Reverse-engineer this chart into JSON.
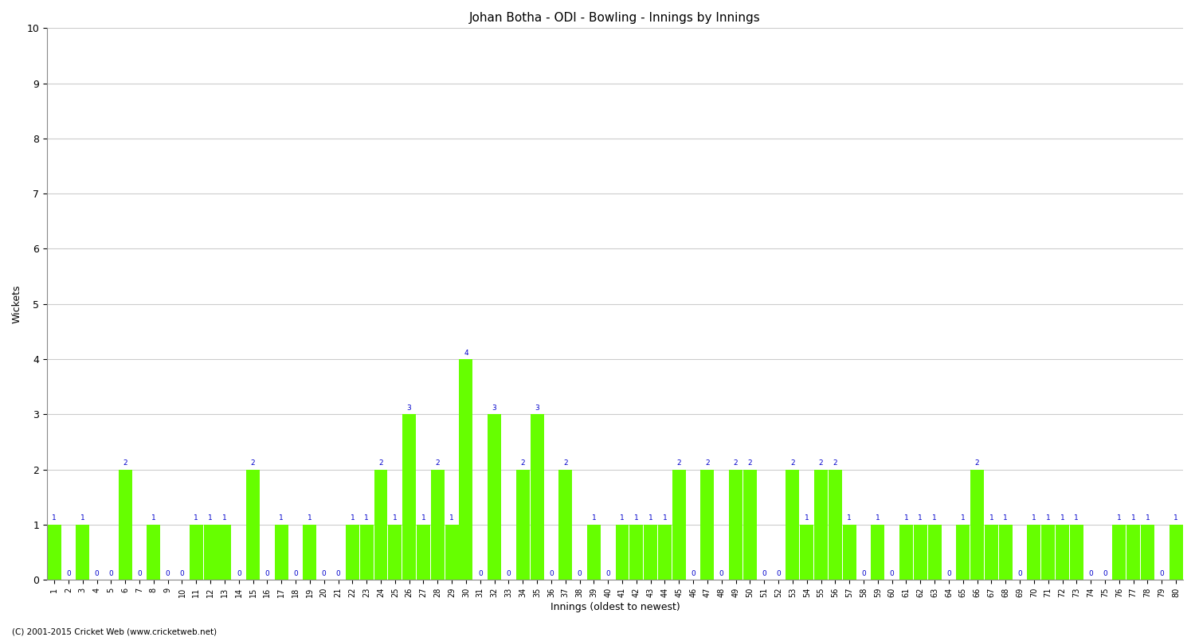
{
  "title": "Johan Botha - ODI - Bowling - Innings by Innings",
  "xlabel": "Innings (oldest to newest)",
  "ylabel": "Wickets",
  "ylim": [
    0,
    10
  ],
  "yticks": [
    0,
    1,
    2,
    3,
    4,
    5,
    6,
    7,
    8,
    9,
    10
  ],
  "bar_color": "#66FF00",
  "label_color": "#0000CC",
  "background_color": "#ffffff",
  "footer": "(C) 2001-2015 Cricket Web (www.cricketweb.net)",
  "innings_labels": [
    "1",
    "2",
    "3",
    "4",
    "5",
    "6",
    "7",
    "8",
    "9",
    "10",
    "11",
    "12",
    "13",
    "14",
    "15",
    "16",
    "17",
    "18",
    "19",
    "20",
    "21",
    "22",
    "23",
    "24",
    "25",
    "26",
    "27",
    "28",
    "29",
    "30",
    "31",
    "32",
    "33",
    "34",
    "35",
    "36",
    "37",
    "38",
    "39",
    "40",
    "41",
    "42",
    "43",
    "44",
    "45",
    "46",
    "47",
    "48",
    "49",
    "50",
    "51",
    "52",
    "53",
    "54",
    "55",
    "56",
    "57",
    "58",
    "59",
    "60",
    "61",
    "62",
    "63",
    "64",
    "65",
    "66",
    "67",
    "68",
    "69",
    "70",
    "71",
    "72",
    "73",
    "74",
    "75",
    "76",
    "77",
    "78",
    "79",
    "80"
  ],
  "wickets": [
    1,
    0,
    1,
    0,
    0,
    2,
    0,
    1,
    0,
    0,
    1,
    1,
    1,
    0,
    2,
    0,
    1,
    0,
    1,
    0,
    0,
    1,
    1,
    2,
    1,
    3,
    1,
    2,
    1,
    4,
    0,
    3,
    0,
    2,
    3,
    0,
    2,
    0,
    1,
    0,
    1,
    1,
    1,
    1,
    2,
    0,
    2,
    0,
    2,
    2,
    0,
    0,
    2,
    1,
    2,
    2,
    1,
    0,
    1,
    0,
    1,
    1,
    1,
    0,
    1,
    2,
    1,
    1,
    0,
    1,
    1,
    1,
    1,
    0,
    0,
    1,
    1,
    1,
    0,
    1
  ]
}
